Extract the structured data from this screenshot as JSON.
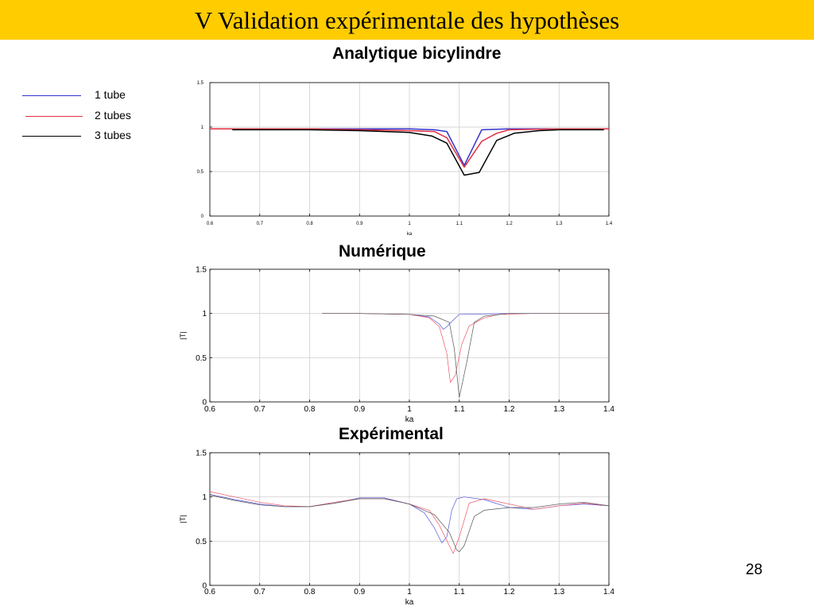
{
  "slide": {
    "title": "V Validation expérimentale des hypothèses",
    "page_number": "28",
    "header_color": "#ffcc00"
  },
  "legend": {
    "items": [
      {
        "label": "1 tube",
        "color": "#3333cc"
      },
      {
        "label": "2 tubes",
        "color": "#e03040"
      },
      {
        "label": "3 tubes",
        "color": "#000000"
      }
    ]
  },
  "chart_data": [
    {
      "type": "line",
      "title": "Analytique bicylindre",
      "xlabel": "ka",
      "ylabel": "",
      "xlim": [
        0.6,
        1.4
      ],
      "ylim": [
        0,
        1.5
      ],
      "xticks": [
        "0.6",
        "0.7",
        "0.8",
        "0.9",
        "1",
        "1.1",
        "1.2",
        "1.3",
        "1.4"
      ],
      "yticks": [
        "0",
        "0.5",
        "1",
        "1.5"
      ],
      "grid": true,
      "series": [
        {
          "color": "#3333cc",
          "x": [
            0.6,
            0.8,
            0.9,
            1.0,
            1.05,
            1.075,
            1.11,
            1.145,
            1.2,
            1.3,
            1.4
          ],
          "y": [
            0.98,
            0.98,
            0.98,
            0.98,
            0.97,
            0.95,
            0.57,
            0.97,
            0.98,
            0.98,
            0.98
          ]
        },
        {
          "color": "#e03040",
          "x": [
            0.6,
            0.8,
            0.9,
            1.0,
            1.05,
            1.075,
            1.11,
            1.145,
            1.175,
            1.2,
            1.3,
            1.4
          ],
          "y": [
            0.98,
            0.98,
            0.97,
            0.96,
            0.95,
            0.88,
            0.55,
            0.84,
            0.93,
            0.97,
            0.98,
            0.98
          ]
        },
        {
          "color": "#000000",
          "x": [
            0.645,
            0.8,
            0.9,
            1.0,
            1.045,
            1.075,
            1.11,
            1.14,
            1.175,
            1.21,
            1.26,
            1.3,
            1.39
          ],
          "y": [
            0.97,
            0.97,
            0.96,
            0.94,
            0.9,
            0.82,
            0.46,
            0.49,
            0.85,
            0.93,
            0.96,
            0.97,
            0.97
          ]
        }
      ]
    },
    {
      "type": "line",
      "title": "Numérique",
      "xlabel": "ka",
      "ylabel": "|T|",
      "xlim": [
        0.6,
        1.4
      ],
      "ylim": [
        0,
        1.5
      ],
      "xticks": [
        "0.6",
        "0.7",
        "0.8",
        "0.9",
        "1",
        "1.1",
        "1.2",
        "1.3",
        "1.4"
      ],
      "yticks": [
        "0",
        "0.5",
        "1",
        "1.5"
      ],
      "grid": true,
      "series": [
        {
          "color": "#5555dd",
          "x": [
            0.825,
            0.9,
            1.0,
            1.04,
            1.06,
            1.068,
            1.075,
            1.085,
            1.1,
            1.2,
            1.4
          ],
          "y": [
            1.0,
            1.0,
            0.99,
            0.96,
            0.88,
            0.82,
            0.85,
            0.91,
            0.99,
            1.0,
            1.0
          ]
        },
        {
          "color": "#ee5566",
          "x": [
            0.825,
            0.9,
            1.0,
            1.04,
            1.06,
            1.075,
            1.082,
            1.092,
            1.105,
            1.12,
            1.15,
            1.18,
            1.25,
            1.4
          ],
          "y": [
            1.0,
            1.0,
            0.99,
            0.95,
            0.85,
            0.55,
            0.22,
            0.3,
            0.65,
            0.86,
            0.95,
            0.99,
            1.0,
            1.0
          ]
        },
        {
          "color": "#555555",
          "x": [
            0.825,
            0.9,
            1.0,
            1.05,
            1.08,
            1.09,
            1.1,
            1.115,
            1.13,
            1.15,
            1.2,
            1.4
          ],
          "y": [
            1.0,
            1.0,
            0.99,
            0.97,
            0.9,
            0.6,
            0.05,
            0.45,
            0.9,
            0.97,
            1.0,
            1.0
          ]
        }
      ]
    },
    {
      "type": "line",
      "title": "Expérimental",
      "xlabel": "ka",
      "ylabel": "|T|",
      "xlim": [
        0.6,
        1.4
      ],
      "ylim": [
        0,
        1.5
      ],
      "xticks": [
        "0.6",
        "0.7",
        "0.8",
        "0.9",
        "1",
        "1.1",
        "1.2",
        "1.3",
        "1.4"
      ],
      "yticks": [
        "0",
        "0.5",
        "1",
        "1.5"
      ],
      "grid": true,
      "series": [
        {
          "color": "#5555dd",
          "x": [
            0.6,
            0.65,
            0.7,
            0.75,
            0.8,
            0.85,
            0.9,
            0.95,
            1.0,
            1.03,
            1.05,
            1.065,
            1.075,
            1.085,
            1.095,
            1.11,
            1.15,
            1.2,
            1.25,
            1.3,
            1.35,
            1.4
          ],
          "y": [
            1.03,
            0.97,
            0.92,
            0.89,
            0.89,
            0.93,
            0.99,
            0.99,
            0.92,
            0.82,
            0.65,
            0.48,
            0.55,
            0.85,
            0.98,
            1.0,
            0.97,
            0.88,
            0.86,
            0.9,
            0.92,
            0.9
          ]
        },
        {
          "color": "#ee5566",
          "x": [
            0.6,
            0.65,
            0.7,
            0.75,
            0.8,
            0.85,
            0.9,
            0.95,
            1.0,
            1.04,
            1.06,
            1.08,
            1.088,
            1.1,
            1.12,
            1.15,
            1.2,
            1.25,
            1.3,
            1.35,
            1.4
          ],
          "y": [
            1.06,
            1.0,
            0.94,
            0.9,
            0.89,
            0.94,
            0.98,
            0.98,
            0.92,
            0.85,
            0.68,
            0.45,
            0.36,
            0.55,
            0.93,
            0.98,
            0.92,
            0.86,
            0.9,
            0.93,
            0.9
          ]
        },
        {
          "color": "#555555",
          "x": [
            0.6,
            0.65,
            0.7,
            0.75,
            0.8,
            0.85,
            0.9,
            0.95,
            1.0,
            1.05,
            1.08,
            1.095,
            1.1,
            1.11,
            1.13,
            1.15,
            1.2,
            1.25,
            1.3,
            1.35,
            1.4
          ],
          "y": [
            1.02,
            0.96,
            0.91,
            0.89,
            0.89,
            0.93,
            0.98,
            0.98,
            0.92,
            0.8,
            0.6,
            0.4,
            0.38,
            0.45,
            0.78,
            0.85,
            0.88,
            0.88,
            0.92,
            0.94,
            0.9
          ]
        }
      ]
    }
  ]
}
